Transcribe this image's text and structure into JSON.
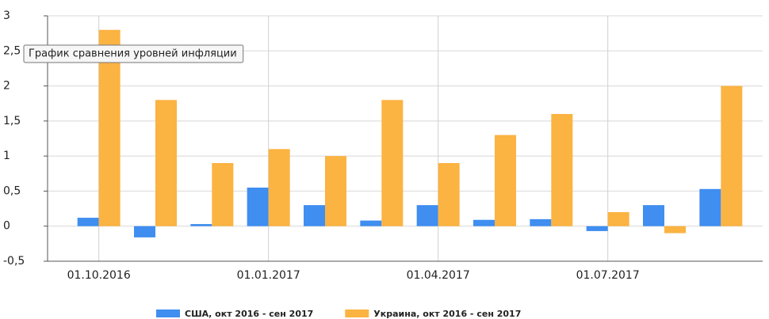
{
  "chart_data": {
    "type": "bar",
    "tooltip": "График сравнения уровней инфляции",
    "categories": [
      "01.10.2016",
      null,
      null,
      "01.01.2017",
      null,
      null,
      "01.04.2017",
      null,
      null,
      "01.07.2017",
      null,
      null
    ],
    "series": [
      {
        "name": "США, окт 2016 - сен 2017",
        "color": "#3f8ef0",
        "values": [
          0.12,
          -0.16,
          0.03,
          0.55,
          0.3,
          0.08,
          0.3,
          0.09,
          0.1,
          -0.07,
          0.3,
          0.53
        ]
      },
      {
        "name": "Украина, окт 2016 - сен 2017",
        "color": "#fbb342",
        "values": [
          2.8,
          1.8,
          0.9,
          1.1,
          1.0,
          1.8,
          0.9,
          1.3,
          1.6,
          0.2,
          -0.1,
          2.0
        ]
      }
    ],
    "ylim": [
      -0.5,
      3
    ],
    "yticks": [
      {
        "value": -0.5,
        "label": "-0,5"
      },
      0,
      {
        "value": 0.5,
        "label": "0,5"
      },
      1,
      {
        "value": 1.5,
        "label": "1,5"
      },
      2,
      {
        "value": 2.5,
        "label": "2,5"
      },
      3
    ],
    "grid": true
  }
}
